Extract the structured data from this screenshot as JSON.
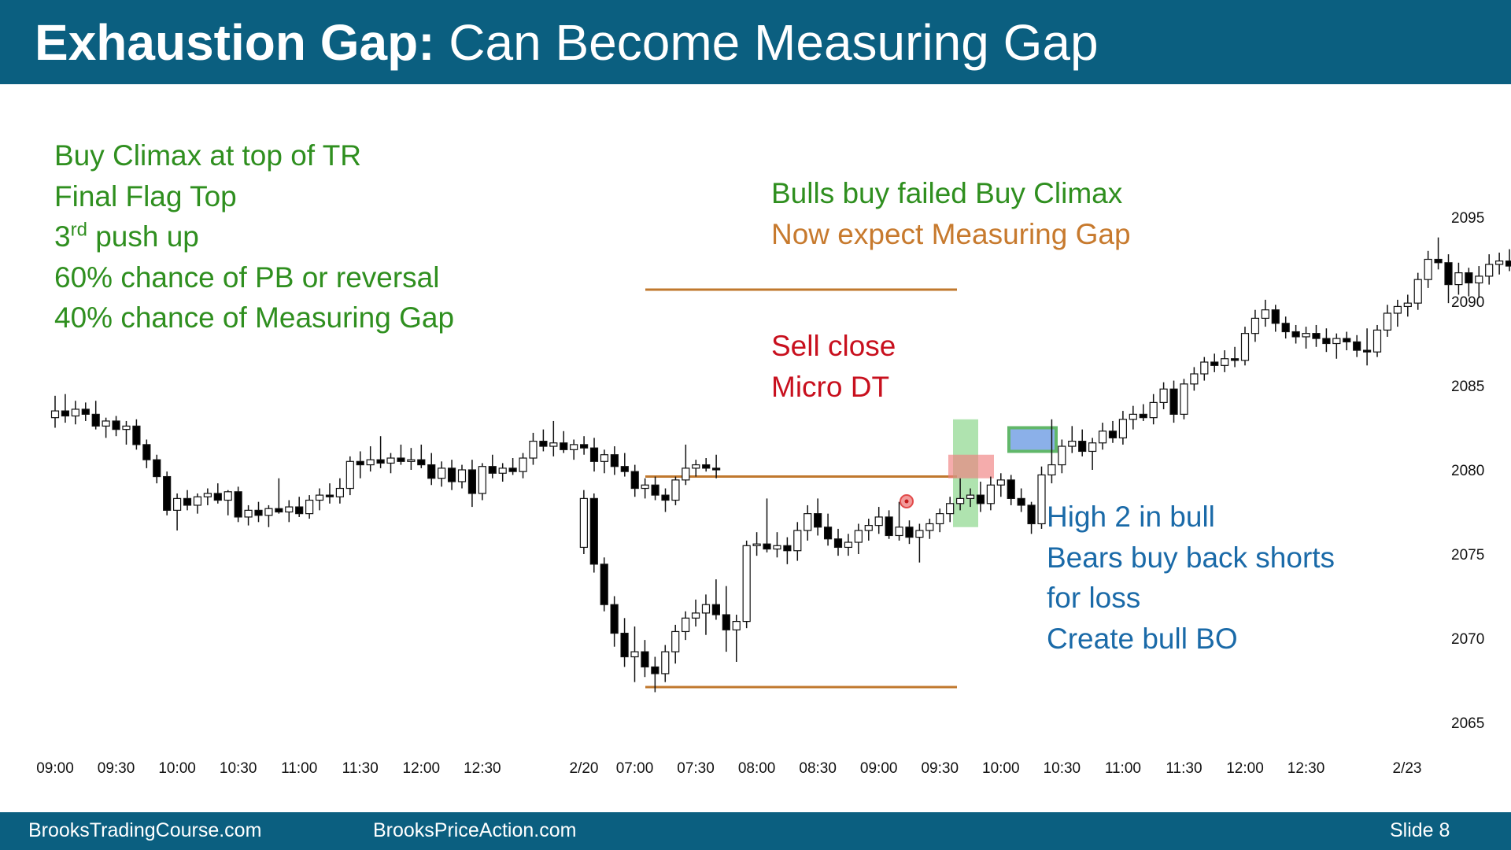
{
  "slide": {
    "title_bold": "Exhaustion Gap:",
    "title_rest": " Can Become Measuring Gap",
    "footer_left": "BrooksTradingCourse.com",
    "footer_mid": "BrooksPriceAction.com",
    "footer_right": "Slide  8"
  },
  "annotations": {
    "left": {
      "line1": "Buy Climax at top of TR",
      "line2": "Final Flag Top",
      "line3_num": "3",
      "line3_sup": "rd",
      "line3_rest": " push up",
      "line4": "60% chance of PB or reversal",
      "line5": "40% chance of Measuring Gap"
    },
    "top": {
      "line1": "Bulls buy failed Buy Climax",
      "line2": "Now expect Measuring Gap"
    },
    "sell": {
      "line1": "Sell close",
      "line2": "Micro DT"
    },
    "bull": {
      "line1": "High 2 in bull",
      "line2": "Bears buy back shorts",
      "line3": "for loss",
      "line4": "Create bull BO"
    }
  },
  "colors": {
    "header": "#0b5f80",
    "green_text": "#2f8f1f",
    "orange_text": "#c77a2e",
    "red_text": "#c8101e",
    "blue_text": "#1a6aa8",
    "level_line": "#c0782e",
    "green_highlight": "#7ad17a",
    "red_highlight": "#f08080",
    "blue_box_fill": "#5b8fe0",
    "blue_box_border": "#1f9a2a"
  },
  "chart_data": {
    "type": "candlestick",
    "ylim": [
      2063,
      2099
    ],
    "yticks": [
      2065,
      2070,
      2075,
      2080,
      2085,
      2090,
      2095
    ],
    "xtick_labels": [
      "09:00",
      "09:30",
      "10:00",
      "10:30",
      "11:00",
      "11:30",
      "12:00",
      "12:30",
      "2/20",
      "07:00",
      "07:30",
      "08:00",
      "08:30",
      "09:00",
      "09:30",
      "10:00",
      "10:30",
      "11:00",
      "11:30",
      "12:00",
      "12:30",
      "2/23"
    ],
    "sessions": [
      {
        "name": "prior day",
        "start": "09:00",
        "candles": [
          [
            2083.1,
            2084.4,
            2082.5,
            2083.5
          ],
          [
            2083.5,
            2084.5,
            2082.8,
            2083.2
          ],
          [
            2083.2,
            2084.1,
            2082.7,
            2083.6
          ],
          [
            2083.6,
            2084.0,
            2082.9,
            2083.3
          ],
          [
            2083.3,
            2084.1,
            2082.4,
            2082.6
          ],
          [
            2082.6,
            2083.1,
            2081.9,
            2082.9
          ],
          [
            2082.9,
            2083.2,
            2082.0,
            2082.4
          ],
          [
            2082.4,
            2082.9,
            2081.5,
            2082.6
          ],
          [
            2082.6,
            2083.0,
            2081.2,
            2081.5
          ],
          [
            2081.5,
            2081.8,
            2080.1,
            2080.6
          ],
          [
            2080.6,
            2080.9,
            2079.2,
            2079.6
          ],
          [
            2079.6,
            2079.9,
            2077.3,
            2077.6
          ],
          [
            2077.6,
            2078.6,
            2076.4,
            2078.3
          ],
          [
            2078.3,
            2078.8,
            2077.6,
            2077.9
          ],
          [
            2077.9,
            2078.6,
            2077.4,
            2078.4
          ],
          [
            2078.4,
            2078.9,
            2077.9,
            2078.6
          ],
          [
            2078.6,
            2079.2,
            2078.0,
            2078.2
          ],
          [
            2078.2,
            2078.8,
            2077.3,
            2078.7
          ],
          [
            2078.7,
            2079.0,
            2076.9,
            2077.2
          ],
          [
            2077.2,
            2077.9,
            2076.7,
            2077.6
          ],
          [
            2077.6,
            2078.1,
            2076.9,
            2077.3
          ],
          [
            2077.3,
            2077.9,
            2076.6,
            2077.7
          ],
          [
            2077.7,
            2079.5,
            2077.4,
            2077.5
          ],
          [
            2077.5,
            2078.2,
            2076.9,
            2077.8
          ],
          [
            2077.8,
            2078.4,
            2077.2,
            2077.4
          ],
          [
            2077.4,
            2078.5,
            2077.1,
            2078.2
          ],
          [
            2078.2,
            2078.9,
            2077.6,
            2078.5
          ],
          [
            2078.5,
            2079.2,
            2078.0,
            2078.4
          ],
          [
            2078.4,
            2079.5,
            2078.0,
            2078.9
          ],
          [
            2078.9,
            2080.8,
            2078.5,
            2080.5
          ],
          [
            2080.5,
            2081.1,
            2079.5,
            2080.3
          ],
          [
            2080.3,
            2081.4,
            2079.9,
            2080.6
          ],
          [
            2080.6,
            2082.0,
            2080.1,
            2080.4
          ],
          [
            2080.4,
            2081.0,
            2079.8,
            2080.7
          ],
          [
            2080.7,
            2081.5,
            2080.3,
            2080.5
          ],
          [
            2080.5,
            2081.3,
            2080.0,
            2080.6
          ],
          [
            2080.6,
            2081.5,
            2080.1,
            2080.3
          ],
          [
            2080.3,
            2081.0,
            2079.1,
            2079.5
          ],
          [
            2079.5,
            2080.5,
            2079.0,
            2080.1
          ],
          [
            2080.1,
            2080.6,
            2078.8,
            2079.3
          ],
          [
            2079.3,
            2080.3,
            2078.9,
            2080.0
          ],
          [
            2080.0,
            2080.6,
            2077.8,
            2078.6
          ],
          [
            2078.6,
            2080.4,
            2078.2,
            2080.2
          ],
          [
            2080.2,
            2080.9,
            2079.5,
            2079.8
          ],
          [
            2079.8,
            2080.4,
            2079.3,
            2080.1
          ],
          [
            2080.1,
            2080.7,
            2079.7,
            2079.9
          ],
          [
            2079.9,
            2081.0,
            2079.5,
            2080.7
          ],
          [
            2080.7,
            2082.2,
            2080.3,
            2081.7
          ],
          [
            2081.7,
            2082.4,
            2081.1,
            2081.4
          ],
          [
            2081.4,
            2082.9,
            2080.8,
            2081.6
          ],
          [
            2081.6,
            2082.3,
            2081.0,
            2081.2
          ],
          [
            2081.2,
            2081.8,
            2080.6,
            2081.5
          ],
          [
            2081.5,
            2082.0,
            2080.9,
            2081.3
          ],
          [
            2081.3,
            2081.9,
            2079.9,
            2080.5
          ],
          [
            2080.5,
            2081.2,
            2079.8,
            2080.9
          ],
          [
            2080.9,
            2081.4,
            2079.7,
            2080.2
          ],
          [
            2080.2,
            2081.0,
            2079.6,
            2079.9
          ],
          [
            2079.9,
            2080.3,
            2078.4,
            2078.9
          ],
          [
            2078.9,
            2079.5,
            2078.3,
            2079.1
          ],
          [
            2079.1,
            2079.6,
            2078.2,
            2078.5
          ],
          [
            2078.5,
            2078.9,
            2077.5,
            2078.2
          ],
          [
            2078.2,
            2079.6,
            2077.9,
            2079.4
          ],
          [
            2079.4,
            2081.5,
            2079.1,
            2080.1
          ],
          [
            2080.1,
            2080.6,
            2079.6,
            2080.3
          ],
          [
            2080.3,
            2080.7,
            2079.9,
            2080.1
          ],
          [
            2080.1,
            2080.9,
            2079.5,
            2080.0
          ]
        ]
      },
      {
        "name": "2/20",
        "start": "06:35",
        "candles": [
          [
            2075.4,
            2078.8,
            2075.0,
            2078.3
          ],
          [
            2078.3,
            2078.6,
            2073.9,
            2074.4
          ],
          [
            2074.4,
            2074.8,
            2071.6,
            2072.0
          ],
          [
            2072.0,
            2072.5,
            2069.5,
            2070.3
          ],
          [
            2070.3,
            2071.2,
            2068.3,
            2068.9
          ],
          [
            2068.9,
            2070.7,
            2067.4,
            2069.2
          ],
          [
            2069.2,
            2069.9,
            2067.7,
            2068.3
          ],
          [
            2068.3,
            2068.9,
            2066.8,
            2067.9
          ],
          [
            2067.9,
            2069.6,
            2067.4,
            2069.2
          ],
          [
            2069.2,
            2070.8,
            2068.5,
            2070.4
          ],
          [
            2070.4,
            2071.6,
            2069.9,
            2071.2
          ],
          [
            2071.2,
            2072.3,
            2070.7,
            2071.5
          ],
          [
            2071.5,
            2072.6,
            2070.2,
            2072.0
          ],
          [
            2072.0,
            2073.5,
            2071.1,
            2071.4
          ],
          [
            2071.4,
            2073.1,
            2069.2,
            2070.5
          ],
          [
            2070.5,
            2071.4,
            2068.6,
            2071.0
          ],
          [
            2071.0,
            2075.8,
            2070.6,
            2075.5
          ],
          [
            2075.5,
            2076.3,
            2074.9,
            2075.6
          ],
          [
            2075.6,
            2078.3,
            2075.1,
            2075.3
          ],
          [
            2075.3,
            2076.3,
            2074.8,
            2075.5
          ],
          [
            2075.5,
            2076.0,
            2074.4,
            2075.2
          ],
          [
            2075.2,
            2076.9,
            2074.6,
            2076.4
          ],
          [
            2076.4,
            2077.9,
            2075.8,
            2077.4
          ],
          [
            2077.4,
            2078.3,
            2076.1,
            2076.6
          ],
          [
            2076.6,
            2077.4,
            2075.5,
            2075.9
          ],
          [
            2075.9,
            2076.5,
            2074.9,
            2075.4
          ],
          [
            2075.4,
            2076.2,
            2074.9,
            2075.7
          ],
          [
            2075.7,
            2076.8,
            2075.0,
            2076.4
          ],
          [
            2076.4,
            2077.1,
            2075.8,
            2076.7
          ],
          [
            2076.7,
            2077.8,
            2076.2,
            2077.2
          ],
          [
            2077.2,
            2077.6,
            2075.9,
            2076.1
          ],
          [
            2076.1,
            2078.1,
            2075.8,
            2076.6
          ],
          [
            2076.6,
            2077.0,
            2075.6,
            2076.0
          ],
          [
            2076.0,
            2076.8,
            2074.5,
            2076.4
          ],
          [
            2076.4,
            2077.1,
            2075.9,
            2076.8
          ],
          [
            2076.8,
            2077.7,
            2076.3,
            2077.4
          ],
          [
            2077.4,
            2078.4,
            2076.9,
            2078.0
          ],
          [
            2078.0,
            2079.5,
            2077.6,
            2078.3
          ],
          [
            2078.3,
            2078.9,
            2077.8,
            2078.5
          ],
          [
            2078.5,
            2079.3,
            2077.5,
            2078.0
          ],
          [
            2078.0,
            2079.6,
            2077.6,
            2079.1
          ],
          [
            2079.1,
            2079.8,
            2078.4,
            2079.4
          ],
          [
            2079.4,
            2079.7,
            2077.9,
            2078.3
          ],
          [
            2078.3,
            2078.9,
            2077.5,
            2077.9
          ],
          [
            2077.9,
            2078.1,
            2076.2,
            2076.8
          ],
          [
            2076.8,
            2080.2,
            2076.5,
            2079.7
          ],
          [
            2079.7,
            2083.0,
            2079.2,
            2080.3
          ],
          [
            2080.3,
            2081.8,
            2079.8,
            2081.4
          ],
          [
            2081.4,
            2082.6,
            2081.0,
            2081.7
          ],
          [
            2081.7,
            2082.4,
            2080.8,
            2081.1
          ],
          [
            2081.1,
            2081.9,
            2080.0,
            2081.6
          ],
          [
            2081.6,
            2082.8,
            2081.2,
            2082.3
          ],
          [
            2082.3,
            2082.9,
            2081.6,
            2081.9
          ],
          [
            2081.9,
            2083.5,
            2081.5,
            2083.0
          ],
          [
            2083.0,
            2083.8,
            2082.4,
            2083.3
          ],
          [
            2083.3,
            2083.9,
            2082.9,
            2083.1
          ],
          [
            2083.1,
            2084.5,
            2082.7,
            2084.0
          ],
          [
            2084.0,
            2085.2,
            2083.6,
            2084.8
          ],
          [
            2084.8,
            2085.3,
            2082.8,
            2083.3
          ],
          [
            2083.3,
            2085.4,
            2083.0,
            2085.1
          ],
          [
            2085.1,
            2086.1,
            2084.7,
            2085.7
          ],
          [
            2085.7,
            2086.7,
            2085.3,
            2086.4
          ],
          [
            2086.4,
            2086.9,
            2085.8,
            2086.2
          ],
          [
            2086.2,
            2087.1,
            2085.8,
            2086.6
          ],
          [
            2086.6,
            2087.3,
            2086.1,
            2086.5
          ],
          [
            2086.5,
            2088.5,
            2086.2,
            2088.1
          ],
          [
            2088.1,
            2089.5,
            2087.6,
            2089.0
          ],
          [
            2089.0,
            2090.1,
            2088.5,
            2089.5
          ],
          [
            2089.5,
            2089.8,
            2088.2,
            2088.7
          ],
          [
            2088.7,
            2089.1,
            2087.8,
            2088.2
          ],
          [
            2088.2,
            2088.6,
            2087.5,
            2087.9
          ],
          [
            2087.9,
            2088.5,
            2087.2,
            2088.1
          ],
          [
            2088.1,
            2088.6,
            2087.3,
            2087.8
          ],
          [
            2087.8,
            2088.4,
            2087.0,
            2087.5
          ],
          [
            2087.5,
            2088.1,
            2086.6,
            2087.8
          ],
          [
            2087.8,
            2088.2,
            2087.1,
            2087.6
          ],
          [
            2087.6,
            2088.0,
            2086.7,
            2087.1
          ],
          [
            2087.1,
            2088.4,
            2086.2,
            2087.0
          ],
          [
            2087.0,
            2088.6,
            2086.7,
            2088.3
          ],
          [
            2088.3,
            2089.8,
            2087.9,
            2089.3
          ],
          [
            2089.3,
            2090.1,
            2088.5,
            2089.7
          ],
          [
            2089.7,
            2090.4,
            2089.1,
            2089.9
          ],
          [
            2089.9,
            2091.7,
            2089.5,
            2091.3
          ],
          [
            2091.3,
            2093.0,
            2090.8,
            2092.5
          ],
          [
            2092.5,
            2093.8,
            2091.9,
            2092.3
          ],
          [
            2092.3,
            2092.8,
            2089.9,
            2091.0
          ],
          [
            2091.0,
            2092.3,
            2090.4,
            2091.7
          ],
          [
            2091.7,
            2092.0,
            2090.3,
            2091.1
          ],
          [
            2091.1,
            2092.1,
            2090.2,
            2091.5
          ],
          [
            2091.5,
            2092.8,
            2091.0,
            2092.2
          ],
          [
            2092.2,
            2092.9,
            2091.6,
            2092.4
          ],
          [
            2092.4,
            2093.1,
            2091.8,
            2092.1
          ],
          [
            2092.1,
            2092.8,
            2090.8,
            2090.9
          ],
          [
            2090.9,
            2091.6,
            2090.3,
            2090.6
          ],
          [
            2090.6,
            2093.0,
            2090.2,
            2092.6
          ],
          [
            2092.6,
            2093.3,
            2092.0,
            2091.9
          ],
          [
            2091.9,
            2092.5,
            2091.4,
            2091.8
          ],
          [
            2091.8,
            2092.3,
            2091.3,
            2091.7
          ]
        ]
      }
    ],
    "levels": [
      {
        "price": 2090.7,
        "from": "2/20 07:00",
        "to": "09:30"
      },
      {
        "price": 2079.6,
        "from": "2/20 07:00",
        "to": "09:30"
      },
      {
        "price": 2067.1,
        "from": "2/20 07:00",
        "to": "09:30"
      }
    ],
    "highlights": [
      {
        "kind": "green",
        "from_price": 2076.6,
        "to_price": 2083.0
      },
      {
        "kind": "red",
        "from_price": 2079.5,
        "to_price": 2080.9
      },
      {
        "kind": "blue",
        "from_price": 2081.1,
        "to_price": 2082.5
      }
    ]
  }
}
